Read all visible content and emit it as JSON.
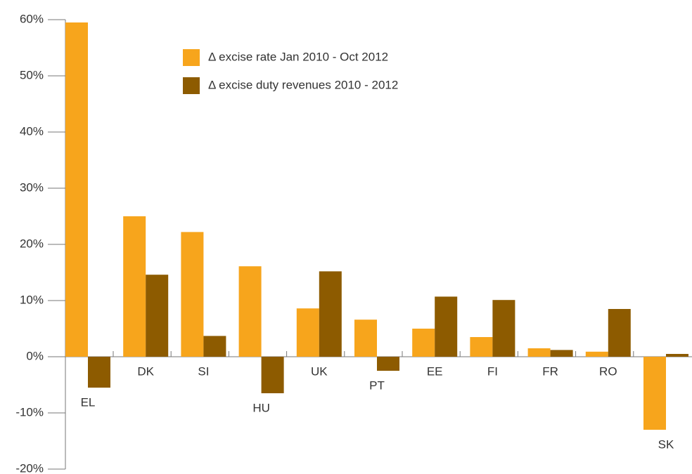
{
  "chart_data": {
    "type": "bar",
    "categories": [
      "EL",
      "DK",
      "SI",
      "HU",
      "UK",
      "PT",
      "EE",
      "FI",
      "FR",
      "RO",
      "SK"
    ],
    "series": [
      {
        "name": "Δ excise rate Jan 2010 - Oct 2012",
        "color": "#f7a51c",
        "values": [
          59.5,
          25,
          22.2,
          16.1,
          8.6,
          6.6,
          5,
          3.5,
          1.5,
          0.9,
          -13
        ]
      },
      {
        "name": "Δ excise duty revenues 2010 - 2012",
        "color": "#8d5b00",
        "values": [
          -5.5,
          14.6,
          3.7,
          -6.5,
          15.2,
          -2.5,
          10.7,
          10.1,
          1.2,
          8.5,
          0.5
        ]
      }
    ],
    "ylim": [
      -20,
      60
    ],
    "yticks": [
      {
        "value": -20,
        "label": "-20%"
      },
      {
        "value": -10,
        "label": "-10%"
      },
      {
        "value": 0,
        "label": "0%"
      },
      {
        "value": 10,
        "label": "10%"
      },
      {
        "value": 20,
        "label": "20%"
      },
      {
        "value": 30,
        "label": "30%"
      },
      {
        "value": 40,
        "label": "40%"
      },
      {
        "value": 50,
        "label": "50%"
      },
      {
        "value": 60,
        "label": "60%"
      }
    ],
    "legend": "top-left"
  }
}
